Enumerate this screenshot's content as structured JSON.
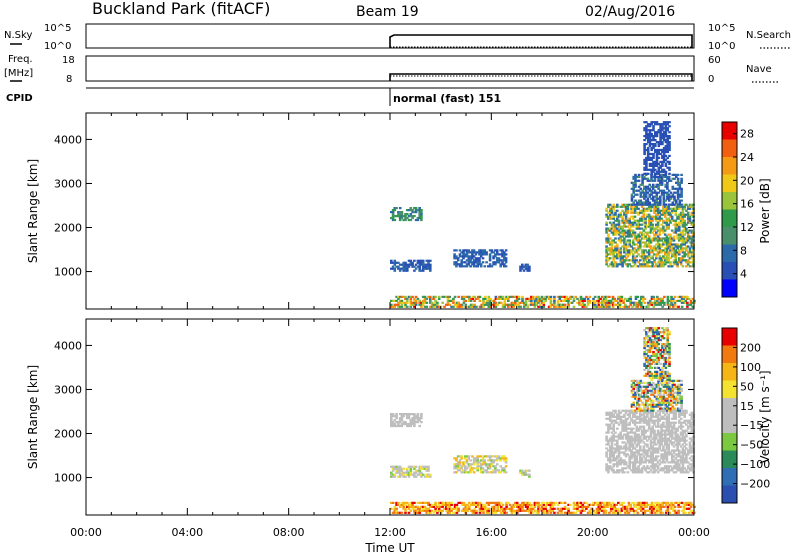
{
  "header": {
    "title": "Buckland Park (fitACF)",
    "beam": "Beam 19",
    "date": "02/Aug/2016"
  },
  "top_panels": {
    "nsky_label": "N.Sky",
    "nsearch_label": "N.Search",
    "nsky_ticks": [
      "10^5",
      "10^0"
    ],
    "freq_label_line1": "Freq.",
    "freq_label_line2": "[MHz]",
    "freq_ticks": [
      "18",
      "8"
    ],
    "nave_label": "Nave",
    "nave_ticks": [
      "60",
      "0"
    ],
    "cpid_label": "CPID",
    "cpid_text": "normal (fast) 151"
  },
  "colors": {
    "power_scale": [
      "#0000ff",
      "#2850b4",
      "#2b6aa8",
      "#4a8f6c",
      "#2f9a4a",
      "#9ac43a",
      "#f0c818",
      "#f59a14",
      "#f06010",
      "#e80000"
    ],
    "velocity_scale": [
      "#2a4fb0",
      "#2f6db4",
      "#2a8a5a",
      "#7bc940",
      "#bebebe",
      "#bebebe",
      "#f3e230",
      "#f5b514",
      "#f07a10",
      "#e80000"
    ]
  },
  "chart_data": [
    {
      "type": "heatmap",
      "name": "power",
      "xlabel": "Time UT",
      "ylabel": "Slant Range [km]",
      "x_range_hours": [
        0,
        24
      ],
      "y_range_km": [
        150,
        4600
      ],
      "x_ticks": [
        "00:00",
        "04:00",
        "08:00",
        "12:00",
        "16:00",
        "20:00",
        "00:00"
      ],
      "y_ticks": [
        1000,
        2000,
        3000,
        4000
      ],
      "colorbar_label": "Power [dB]",
      "colorbar_ticks": [
        "4",
        "8",
        "12",
        "16",
        "20",
        "24",
        "28"
      ],
      "colorbar_range": [
        0,
        30
      ],
      "regions": [
        {
          "t0": 12.0,
          "t1": 24.0,
          "r0": 180,
          "r1": 420,
          "v0": 8,
          "v1": 28
        },
        {
          "t0": 12.0,
          "t1": 13.2,
          "r0": 2150,
          "r1": 2450,
          "v0": 6,
          "v1": 14
        },
        {
          "t0": 12.0,
          "t1": 13.6,
          "r0": 1000,
          "r1": 1250,
          "v0": 3,
          "v1": 8
        },
        {
          "t0": 14.5,
          "t1": 16.6,
          "r0": 1100,
          "r1": 1500,
          "v0": 3,
          "v1": 9
        },
        {
          "t0": 17.1,
          "t1": 17.5,
          "r0": 1000,
          "r1": 1150,
          "v0": 3,
          "v1": 7
        },
        {
          "t0": 20.5,
          "t1": 24.0,
          "r0": 1100,
          "r1": 2500,
          "v0": 6,
          "v1": 24
        },
        {
          "t0": 21.5,
          "t1": 23.5,
          "r0": 2500,
          "r1": 3200,
          "v0": 3,
          "v1": 10
        },
        {
          "t0": 22.0,
          "t1": 23.0,
          "r0": 3200,
          "r1": 4400,
          "v0": 3,
          "v1": 6
        }
      ]
    },
    {
      "type": "heatmap",
      "name": "velocity",
      "xlabel": "Time UT",
      "ylabel": "Slant Range [km]",
      "x_range_hours": [
        0,
        24
      ],
      "y_range_km": [
        150,
        4600
      ],
      "x_ticks": [
        "00:00",
        "04:00",
        "08:00",
        "12:00",
        "16:00",
        "20:00",
        "00:00"
      ],
      "y_ticks": [
        1000,
        2000,
        3000,
        4000
      ],
      "colorbar_label": "Velocity [m s⁻¹]",
      "colorbar_ticks": [
        "200",
        "100",
        "50",
        "15",
        "-15",
        "-50",
        "-100",
        "-200"
      ],
      "regions": [
        {
          "t0": 12.0,
          "t1": 24.0,
          "r0": 180,
          "r1": 420,
          "v0": 6,
          "v1": 9
        },
        {
          "t0": 12.0,
          "t1": 13.2,
          "r0": 2150,
          "r1": 2450,
          "v0": 4,
          "v1": 5
        },
        {
          "t0": 12.0,
          "t1": 13.6,
          "r0": 1000,
          "r1": 1250,
          "v0": 3,
          "v1": 6
        },
        {
          "t0": 14.5,
          "t1": 16.6,
          "r0": 1100,
          "r1": 1500,
          "v0": 3,
          "v1": 7
        },
        {
          "t0": 17.1,
          "t1": 17.5,
          "r0": 1000,
          "r1": 1150,
          "v0": 3,
          "v1": 6
        },
        {
          "t0": 20.5,
          "t1": 24.0,
          "r0": 1100,
          "r1": 2500,
          "v0": 4,
          "v1": 5
        },
        {
          "t0": 21.5,
          "t1": 23.5,
          "r0": 2500,
          "r1": 3200,
          "v0": 0,
          "v1": 9
        },
        {
          "t0": 22.0,
          "t1": 23.0,
          "r0": 3200,
          "r1": 4400,
          "v0": 0,
          "v1": 9
        }
      ]
    }
  ]
}
